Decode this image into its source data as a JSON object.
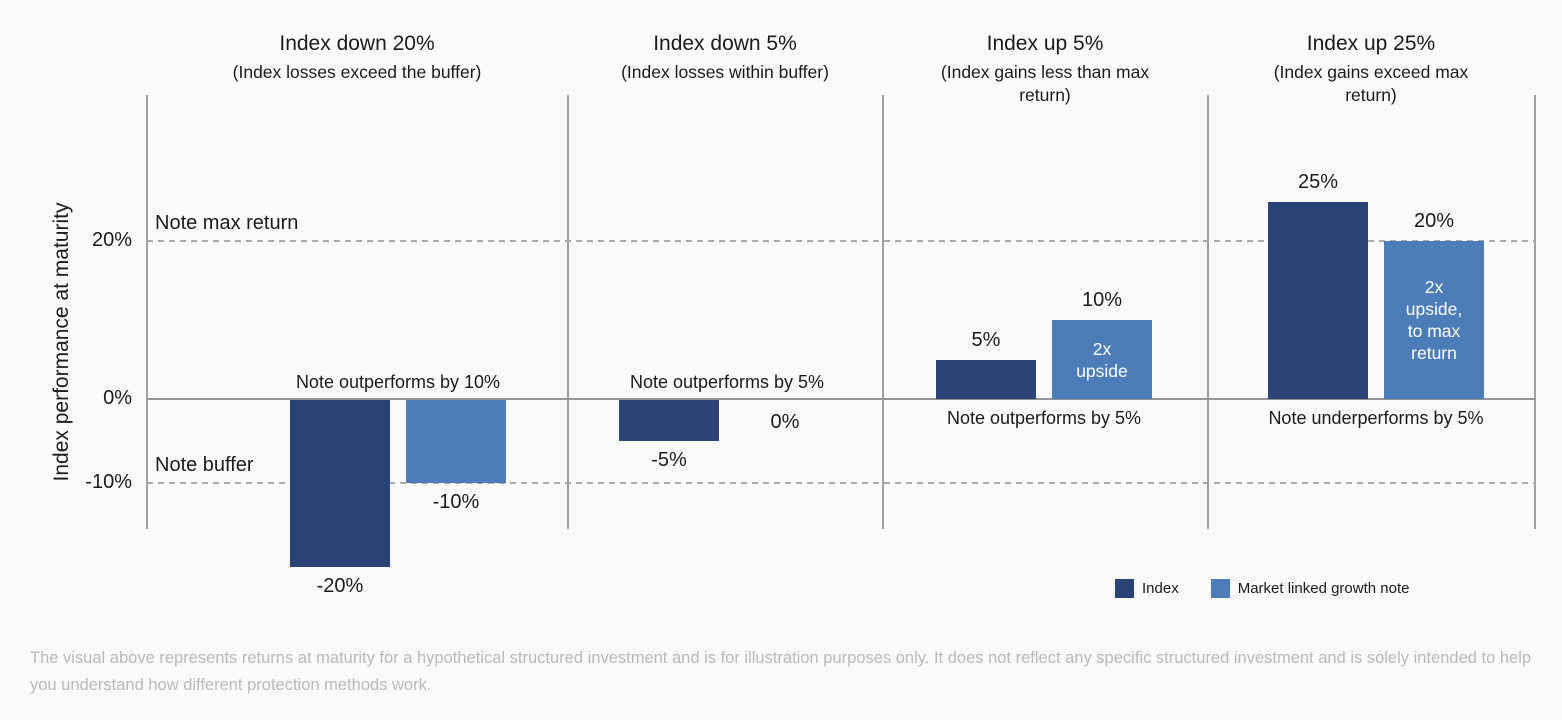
{
  "footer": {
    "disclaimer": "The visual above represents returns at maturity for a hypothetical structured investment and is for illustration purposes only. It does not reflect any specific structured investment and is solely intended to help you understand how different protection methods work."
  },
  "colors": {
    "index": "#2b4377",
    "note": "#4d7db8",
    "axis_line": "#a0a0a0",
    "zero_line": "#949494",
    "dashed_line": "#a8a8a8",
    "text": "#1b1b1b",
    "bar_inner_text": "#ffffff",
    "footer_text": "#b9b9b9",
    "background": "#fafafa"
  },
  "chart_data": {
    "type": "bar",
    "title": "",
    "ylabel": "Index performance at maturity",
    "ylim": [
      -24,
      34
    ],
    "grid": false,
    "legend_position": "bottom-right",
    "categories": [
      "Index down 20%",
      "Index down 5%",
      "Index up 5%",
      "Index up 25%"
    ],
    "series": [
      {
        "name": "Index",
        "values": [
          -20,
          -5,
          5,
          25
        ]
      },
      {
        "name": "Market linked growth note",
        "values": [
          -10,
          0,
          10,
          20
        ]
      }
    ],
    "yticks": [
      {
        "value": 20,
        "label": "20%"
      },
      {
        "value": 0,
        "label": "0%"
      },
      {
        "value": -10,
        "label": "-10%"
      }
    ],
    "reference_lines": [
      {
        "value": 20,
        "label": "Note max return",
        "style": "dashed"
      },
      {
        "value": -10,
        "label": "Note buffer",
        "style": "dashed"
      }
    ],
    "panels": [
      {
        "title": "Index down 20%",
        "subtitle": "(Index losses exceed the buffer)",
        "index_value": -20,
        "index_label": "-20%",
        "note_value": -10,
        "note_label": "-10%",
        "note_inner_lines": [],
        "annotation": "Note outperforms by 10%",
        "annotation_side": "above"
      },
      {
        "title": "Index down 5%",
        "subtitle": "(Index losses within buffer)",
        "index_value": -5,
        "index_label": "-5%",
        "note_value": 0,
        "note_label": "0%",
        "note_inner_lines": [],
        "annotation": "Note outperforms by 5%",
        "annotation_side": "above"
      },
      {
        "title": "Index up 5%",
        "subtitle": "(Index gains less than max return)",
        "index_value": 5,
        "index_label": "5%",
        "note_value": 10,
        "note_label": "10%",
        "note_inner_lines": [
          "2x",
          "upside"
        ],
        "annotation": "Note outperforms by 5%",
        "annotation_side": "below"
      },
      {
        "title": "Index up 25%",
        "subtitle": "(Index gains exceed max return)",
        "index_value": 25,
        "index_label": "25%",
        "note_value": 20,
        "note_label": "20%",
        "note_inner_lines": [
          "2x",
          "upside,",
          "to max",
          "return"
        ],
        "annotation": "Note underperforms by 5%",
        "annotation_side": "below"
      }
    ]
  }
}
